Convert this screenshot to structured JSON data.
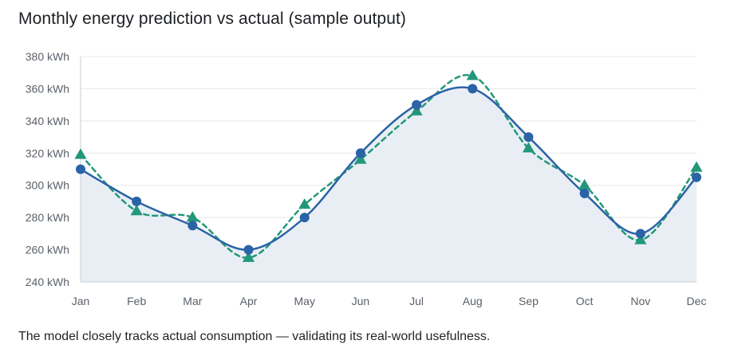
{
  "title": "Monthly energy prediction vs actual (sample output)",
  "caption": "The model closely tracks actual consumption — validating its real-world usefulness.",
  "colors": {
    "actual": "#2b63a6",
    "predicted": "#23977a",
    "area": "#e9eef5",
    "grid": "#e6e8eb",
    "axis": "#c9cdd2"
  },
  "chart_data": {
    "type": "line",
    "title": "Monthly energy prediction vs actual (sample output)",
    "xlabel": "",
    "ylabel": "",
    "categories": [
      "Jan",
      "Feb",
      "Mar",
      "Apr",
      "May",
      "Jun",
      "Jul",
      "Aug",
      "Sep",
      "Oct",
      "Nov",
      "Dec"
    ],
    "y_ticks": [
      "240 kWh",
      "260 kWh",
      "280 kWh",
      "300 kWh",
      "320 kWh",
      "340 kWh",
      "360 kWh",
      "380 kWh"
    ],
    "ylim": [
      240,
      380
    ],
    "grid": true,
    "legend": "none",
    "series": [
      {
        "marker": "circle",
        "style": "solid, filled area",
        "values": [
          310,
          290,
          275,
          260,
          280,
          320,
          350,
          360,
          330,
          295,
          270,
          305
        ]
      },
      {
        "marker": "triangle",
        "style": "dashed",
        "values": [
          319,
          284,
          280,
          255,
          288,
          316,
          346,
          368,
          323,
          300,
          266,
          311
        ]
      }
    ]
  }
}
